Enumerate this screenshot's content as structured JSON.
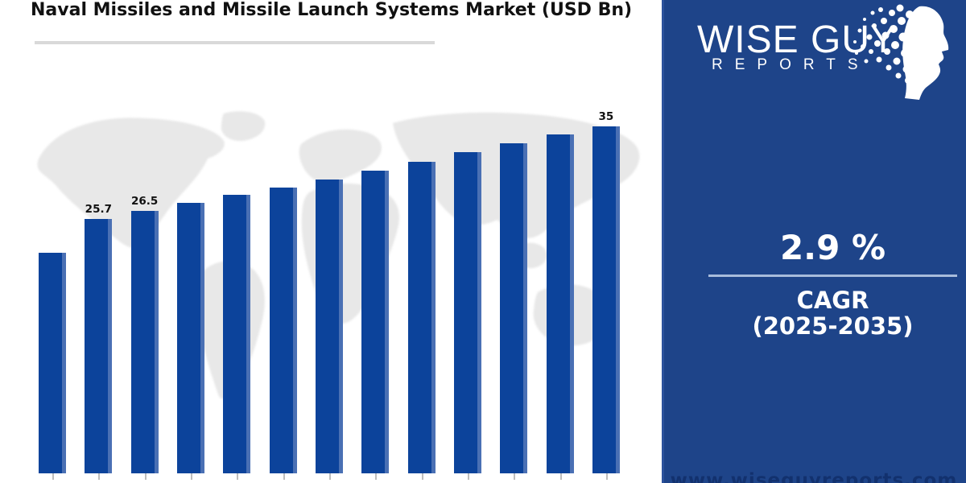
{
  "title": "Naval Missiles and Missile Launch Systems Market (USD Bn)",
  "chart_data": {
    "type": "bar",
    "title": "Naval Missiles and Missile Launch Systems Market (USD Bn)",
    "unit": "USD Bn",
    "categories": [
      "",
      "",
      "",
      "",
      "",
      "",
      "",
      "",
      "",
      "",
      "",
      "",
      ""
    ],
    "values": [
      22.3,
      25.7,
      26.5,
      27.3,
      28.1,
      28.9,
      29.7,
      30.6,
      31.5,
      32.4,
      33.3,
      34.2,
      35
    ],
    "value_labels": [
      null,
      "25.7",
      "26.5",
      null,
      null,
      null,
      null,
      null,
      null,
      null,
      null,
      null,
      "35"
    ],
    "bar_color": "#0c439b",
    "bar_edge_highlight": "#4a70b4",
    "ylim": [
      0,
      36.5
    ],
    "grid": false,
    "x_axis_labels_visible": false,
    "legend": "none",
    "background_watermark": "world-map"
  },
  "colors": {
    "panel_background": "#1e4489",
    "divider": "#a8bcdb",
    "title_underline": "#d9d9d9",
    "map_gray": "#e8e8e8",
    "tick_gray": "#bdbdbd"
  },
  "side_panel": {
    "logo": {
      "brand_line1": "WISE GUY",
      "brand_line2": "REPORTS",
      "icon": "dotted-head-profile"
    },
    "cagr_value": "2.9 %",
    "cagr_label": "CAGR",
    "cagr_period": "(2025-2035)",
    "website_url": "www.wiseguyreports.com"
  }
}
